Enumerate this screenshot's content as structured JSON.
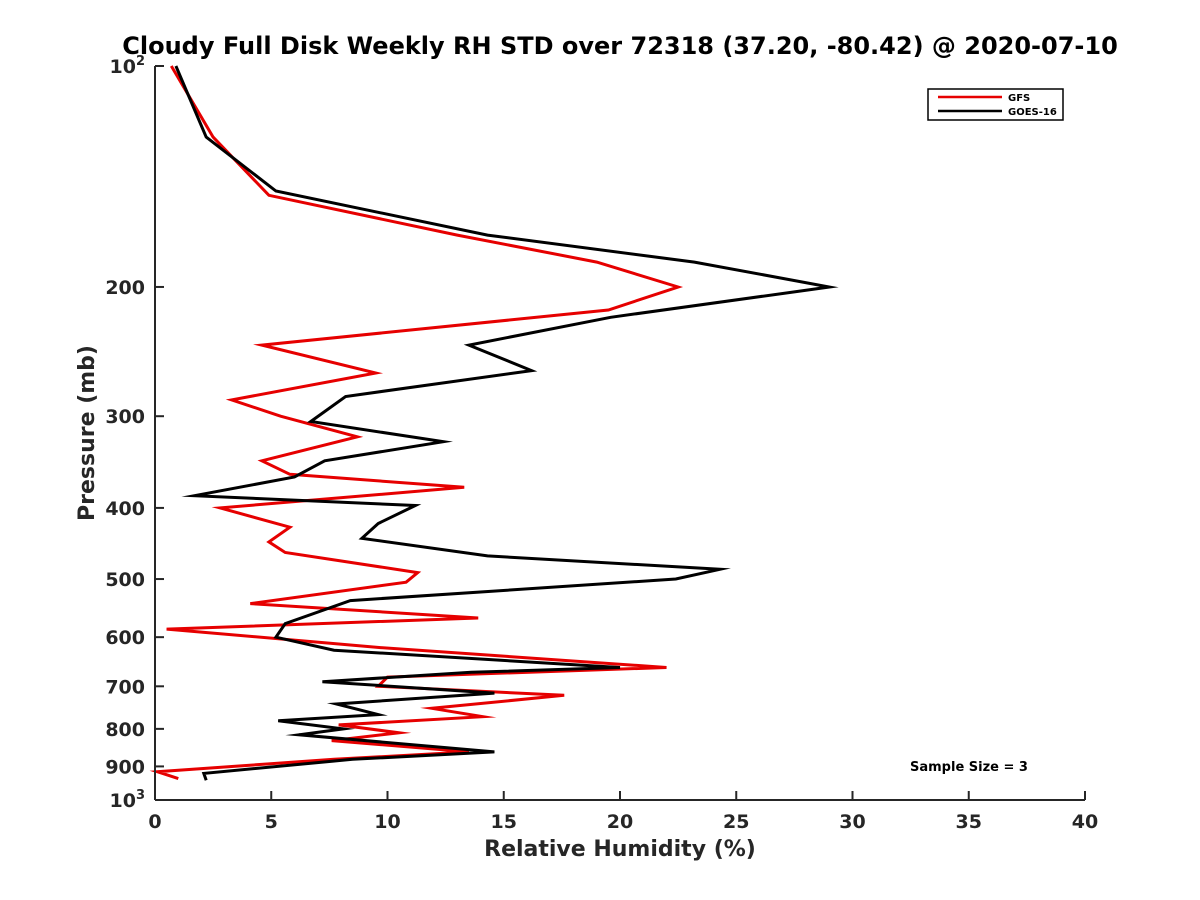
{
  "chart_data": {
    "type": "line",
    "title": "Cloudy Full Disk Weekly RH STD over 72318 (37.20, -80.42) @ 2020-07-10",
    "xlabel": "Relative Humidity (%)",
    "ylabel": "Pressure (mb)",
    "xlim": [
      0,
      40
    ],
    "ylim": [
      100,
      1000
    ],
    "yscale": "log",
    "y_reversed": true,
    "xticks": [
      0,
      5,
      10,
      15,
      20,
      25,
      30,
      35,
      40
    ],
    "yticks": [
      {
        "value": 100,
        "base": "10",
        "exp": "2"
      },
      {
        "value": 200,
        "label": "200"
      },
      {
        "value": 300,
        "label": "300"
      },
      {
        "value": 400,
        "label": "400"
      },
      {
        "value": 500,
        "label": "500"
      },
      {
        "value": 600,
        "label": "600"
      },
      {
        "value": 700,
        "label": "700"
      },
      {
        "value": 800,
        "label": "800"
      },
      {
        "value": 900,
        "label": "900"
      },
      {
        "value": 1000,
        "base": "10",
        "exp": "3"
      }
    ],
    "legend": {
      "position": "top-right",
      "entries": [
        "GFS",
        "GOES-16"
      ]
    },
    "annotation": "Sample Size = 3",
    "series": [
      {
        "name": "GFS",
        "color": "#e60000",
        "points": [
          {
            "x": 0.7,
            "y": 100
          },
          {
            "x": 2.5,
            "y": 125
          },
          {
            "x": 4.9,
            "y": 150
          },
          {
            "x": 13.0,
            "y": 170
          },
          {
            "x": 19.0,
            "y": 185
          },
          {
            "x": 22.5,
            "y": 200
          },
          {
            "x": 19.5,
            "y": 215
          },
          {
            "x": 4.6,
            "y": 240
          },
          {
            "x": 9.5,
            "y": 262
          },
          {
            "x": 3.3,
            "y": 285
          },
          {
            "x": 5.4,
            "y": 300
          },
          {
            "x": 8.7,
            "y": 320
          },
          {
            "x": 4.6,
            "y": 345
          },
          {
            "x": 5.8,
            "y": 360
          },
          {
            "x": 13.3,
            "y": 375
          },
          {
            "x": 2.8,
            "y": 400
          },
          {
            "x": 5.8,
            "y": 425
          },
          {
            "x": 4.9,
            "y": 445
          },
          {
            "x": 5.6,
            "y": 460
          },
          {
            "x": 11.3,
            "y": 490
          },
          {
            "x": 10.8,
            "y": 505
          },
          {
            "x": 4.1,
            "y": 540
          },
          {
            "x": 13.9,
            "y": 565
          },
          {
            "x": 0.5,
            "y": 585
          },
          {
            "x": 9.7,
            "y": 620
          },
          {
            "x": 22.0,
            "y": 660
          },
          {
            "x": 10.0,
            "y": 680
          },
          {
            "x": 9.6,
            "y": 700
          },
          {
            "x": 17.6,
            "y": 720
          },
          {
            "x": 11.9,
            "y": 750
          },
          {
            "x": 14.1,
            "y": 770
          },
          {
            "x": 7.9,
            "y": 790
          },
          {
            "x": 10.5,
            "y": 810
          },
          {
            "x": 7.6,
            "y": 830
          },
          {
            "x": 13.5,
            "y": 860
          },
          {
            "x": 7.7,
            "y": 880
          },
          {
            "x": 0.1,
            "y": 915
          },
          {
            "x": 1.0,
            "y": 935
          }
        ]
      },
      {
        "name": "GOES-16",
        "color": "#000000",
        "points": [
          {
            "x": 0.9,
            "y": 100
          },
          {
            "x": 2.2,
            "y": 125
          },
          {
            "x": 5.2,
            "y": 148
          },
          {
            "x": 14.3,
            "y": 170
          },
          {
            "x": 23.2,
            "y": 185
          },
          {
            "x": 29.0,
            "y": 200
          },
          {
            "x": 19.6,
            "y": 220
          },
          {
            "x": 13.5,
            "y": 240
          },
          {
            "x": 16.2,
            "y": 260
          },
          {
            "x": 8.2,
            "y": 282
          },
          {
            "x": 6.7,
            "y": 305
          },
          {
            "x": 12.4,
            "y": 325
          },
          {
            "x": 7.3,
            "y": 345
          },
          {
            "x": 6.0,
            "y": 363
          },
          {
            "x": 1.7,
            "y": 385
          },
          {
            "x": 11.2,
            "y": 397
          },
          {
            "x": 9.6,
            "y": 420
          },
          {
            "x": 8.9,
            "y": 440
          },
          {
            "x": 14.3,
            "y": 465
          },
          {
            "x": 24.3,
            "y": 485
          },
          {
            "x": 22.4,
            "y": 500
          },
          {
            "x": 8.4,
            "y": 535
          },
          {
            "x": 5.6,
            "y": 575
          },
          {
            "x": 5.2,
            "y": 600
          },
          {
            "x": 7.7,
            "y": 625
          },
          {
            "x": 20.0,
            "y": 660
          },
          {
            "x": 13.6,
            "y": 670
          },
          {
            "x": 7.2,
            "y": 690
          },
          {
            "x": 14.6,
            "y": 715
          },
          {
            "x": 7.8,
            "y": 740
          },
          {
            "x": 9.6,
            "y": 765
          },
          {
            "x": 5.3,
            "y": 780
          },
          {
            "x": 8.1,
            "y": 800
          },
          {
            "x": 6.2,
            "y": 815
          },
          {
            "x": 14.6,
            "y": 860
          },
          {
            "x": 8.5,
            "y": 880
          },
          {
            "x": 2.1,
            "y": 920
          },
          {
            "x": 2.2,
            "y": 940
          }
        ]
      }
    ]
  }
}
